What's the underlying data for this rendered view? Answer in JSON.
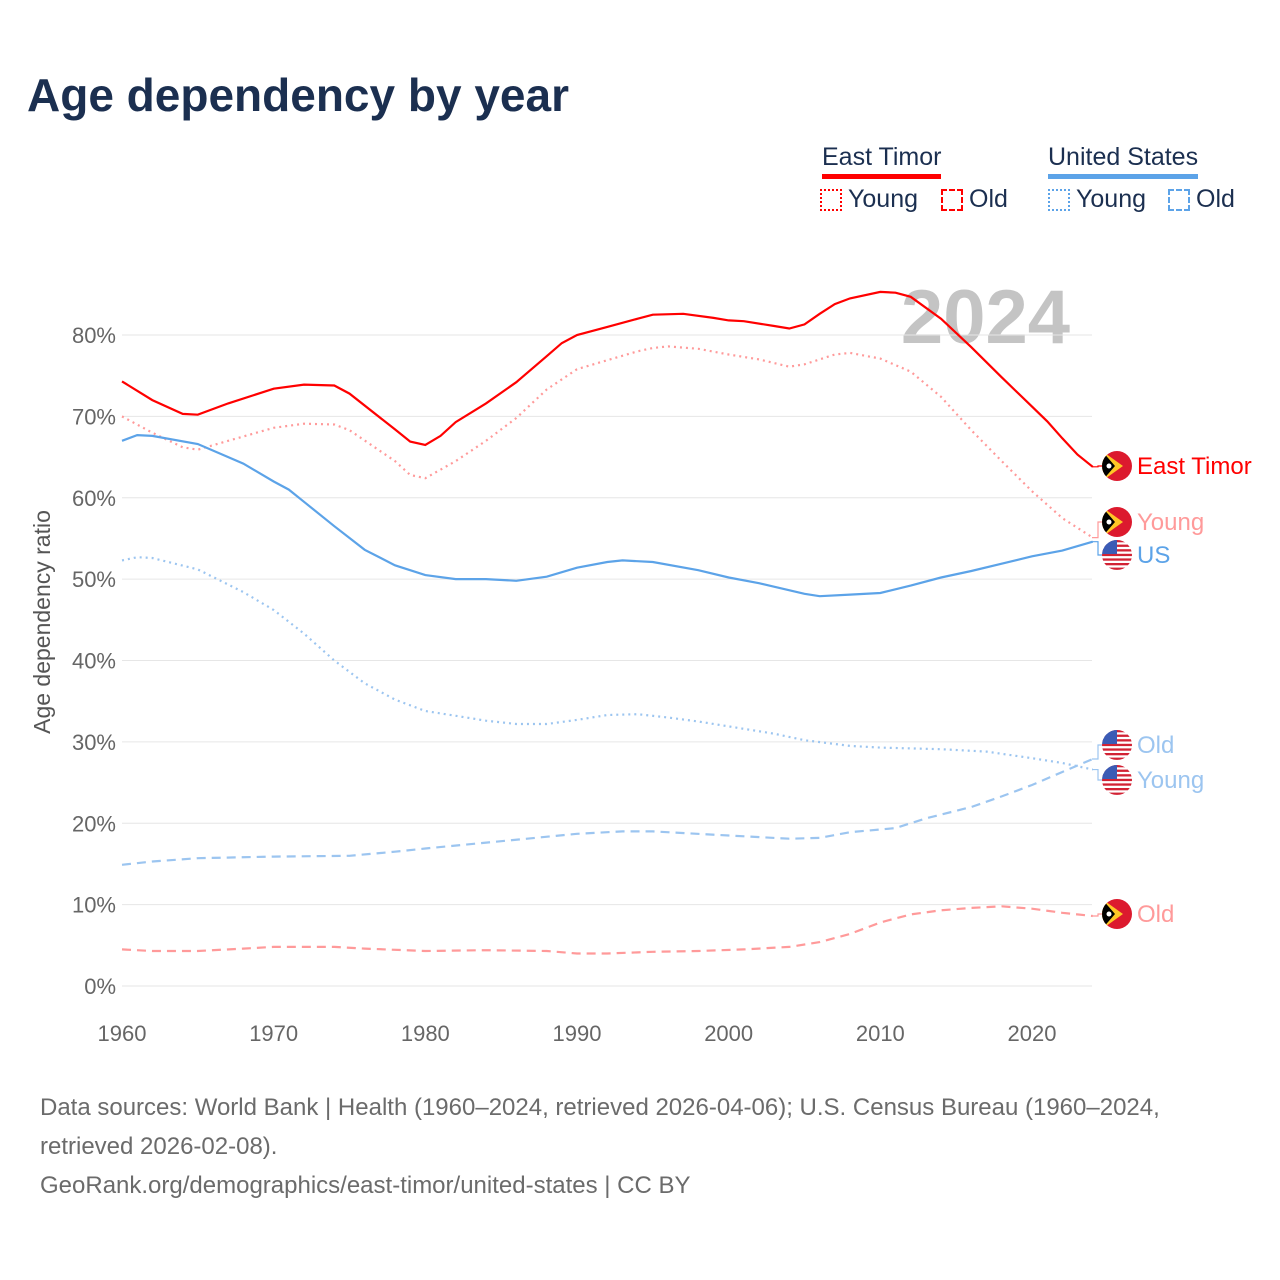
{
  "title": "Age dependency by year",
  "legend": {
    "groups": [
      {
        "name": "East Timor",
        "color": "#ff0000",
        "items": [
          {
            "label": "Young",
            "style": "dotted"
          },
          {
            "label": "Old",
            "style": "dashed"
          }
        ]
      },
      {
        "name": "United States",
        "color": "#5ca3e8",
        "items": [
          {
            "label": "Young",
            "style": "dotted"
          },
          {
            "label": "Old",
            "style": "dashed"
          }
        ]
      }
    ]
  },
  "watermark_year": "2024",
  "footer": {
    "sources": "Data sources: World Bank | Health (1960–2024, retrieved 2026-04-06); U.S. Census Bureau (1960–2024, retrieved 2026-02-08).",
    "link": "GeoRank.org/demographics/east-timor/united-states | CC BY"
  },
  "chart_data": {
    "type": "line",
    "title": "Age dependency by year",
    "xlabel": "",
    "ylabel": "Age dependency ratio",
    "xlim": [
      1960,
      2024
    ],
    "ylim": [
      0,
      85
    ],
    "xticks": [
      1960,
      1970,
      1980,
      1990,
      2000,
      2010,
      2020
    ],
    "yticks": [
      0,
      10,
      20,
      30,
      40,
      50,
      60,
      70,
      80
    ],
    "ytick_labels": [
      "0%",
      "10%",
      "20%",
      "30%",
      "40%",
      "50%",
      "60%",
      "70%",
      "80%"
    ],
    "series": [
      {
        "name": "East Timor",
        "end_label": "East Timor",
        "flag": "tl",
        "color": "#ff0000",
        "dash": "solid",
        "points": [
          [
            1960,
            74.3
          ],
          [
            1962,
            72
          ],
          [
            1964,
            70.3
          ],
          [
            1965,
            70.2
          ],
          [
            1967,
            71.6
          ],
          [
            1970,
            73.4
          ],
          [
            1972,
            73.9
          ],
          [
            1974,
            73.8
          ],
          [
            1975,
            72.8
          ],
          [
            1978,
            68.4
          ],
          [
            1979,
            66.9
          ],
          [
            1980,
            66.5
          ],
          [
            1981,
            67.6
          ],
          [
            1982,
            69.3
          ],
          [
            1984,
            71.6
          ],
          [
            1986,
            74.2
          ],
          [
            1988,
            77.4
          ],
          [
            1989,
            79
          ],
          [
            1990,
            80
          ],
          [
            1992,
            81
          ],
          [
            1994,
            82
          ],
          [
            1995,
            82.5
          ],
          [
            1997,
            82.6
          ],
          [
            1999,
            82.1
          ],
          [
            2000,
            81.8
          ],
          [
            2001,
            81.7
          ],
          [
            2003,
            81.1
          ],
          [
            2004,
            80.8
          ],
          [
            2005,
            81.3
          ],
          [
            2006,
            82.6
          ],
          [
            2007,
            83.8
          ],
          [
            2008,
            84.5
          ],
          [
            2010,
            85.3
          ],
          [
            2011,
            85.2
          ],
          [
            2012,
            84.7
          ],
          [
            2014,
            82
          ],
          [
            2016,
            78.5
          ],
          [
            2018,
            74.8
          ],
          [
            2020,
            71.2
          ],
          [
            2021,
            69.4
          ],
          [
            2022,
            67.3
          ],
          [
            2023,
            65.3
          ],
          [
            2024,
            63.8
          ]
        ]
      },
      {
        "name": "East Timor Young",
        "end_label": "Young",
        "flag": "tl",
        "color": "#ff9a9a",
        "dash": "dotted",
        "points": [
          [
            1960,
            70
          ],
          [
            1962,
            68
          ],
          [
            1964,
            66.2
          ],
          [
            1965,
            65.9
          ],
          [
            1967,
            67
          ],
          [
            1970,
            68.6
          ],
          [
            1972,
            69.1
          ],
          [
            1974,
            69
          ],
          [
            1975,
            68.3
          ],
          [
            1978,
            64.5
          ],
          [
            1979,
            62.8
          ],
          [
            1980,
            62.4
          ],
          [
            1982,
            64.5
          ],
          [
            1984,
            67
          ],
          [
            1986,
            69.8
          ],
          [
            1988,
            73.3
          ],
          [
            1990,
            75.8
          ],
          [
            1992,
            76.9
          ],
          [
            1994,
            78
          ],
          [
            1995,
            78.4
          ],
          [
            1996,
            78.6
          ],
          [
            1998,
            78.3
          ],
          [
            2000,
            77.6
          ],
          [
            2002,
            77
          ],
          [
            2004,
            76.1
          ],
          [
            2005,
            76.4
          ],
          [
            2007,
            77.6
          ],
          [
            2008,
            77.8
          ],
          [
            2010,
            77.1
          ],
          [
            2012,
            75.5
          ],
          [
            2014,
            72.4
          ],
          [
            2016,
            68.3
          ],
          [
            2018,
            64.5
          ],
          [
            2020,
            60.8
          ],
          [
            2022,
            57.5
          ],
          [
            2024,
            55.1
          ]
        ]
      },
      {
        "name": "United States",
        "end_label": "US",
        "flag": "us",
        "color": "#5ca3e8",
        "dash": "solid",
        "points": [
          [
            1960,
            67
          ],
          [
            1961,
            67.7
          ],
          [
            1962,
            67.6
          ],
          [
            1965,
            66.6
          ],
          [
            1968,
            64.2
          ],
          [
            1970,
            62
          ],
          [
            1971,
            61
          ],
          [
            1972,
            59.5
          ],
          [
            1974,
            56.5
          ],
          [
            1976,
            53.6
          ],
          [
            1978,
            51.7
          ],
          [
            1980,
            50.5
          ],
          [
            1982,
            50
          ],
          [
            1984,
            50
          ],
          [
            1986,
            49.8
          ],
          [
            1988,
            50.3
          ],
          [
            1990,
            51.4
          ],
          [
            1992,
            52.1
          ],
          [
            1993,
            52.3
          ],
          [
            1995,
            52.1
          ],
          [
            1998,
            51.1
          ],
          [
            2000,
            50.2
          ],
          [
            2002,
            49.5
          ],
          [
            2005,
            48.2
          ],
          [
            2006,
            47.9
          ],
          [
            2008,
            48.1
          ],
          [
            2010,
            48.3
          ],
          [
            2012,
            49.2
          ],
          [
            2014,
            50.2
          ],
          [
            2016,
            51
          ],
          [
            2018,
            51.9
          ],
          [
            2020,
            52.8
          ],
          [
            2022,
            53.5
          ],
          [
            2024,
            54.6
          ]
        ]
      },
      {
        "name": "United States Old",
        "end_label": "Old",
        "flag": "us",
        "color": "#9cc5f0",
        "dash": "dashed",
        "points": [
          [
            1960,
            14.9
          ],
          [
            1962,
            15.3
          ],
          [
            1965,
            15.7
          ],
          [
            1970,
            15.9
          ],
          [
            1975,
            16
          ],
          [
            1978,
            16.5
          ],
          [
            1980,
            16.9
          ],
          [
            1985,
            17.8
          ],
          [
            1990,
            18.7
          ],
          [
            1993,
            19
          ],
          [
            1995,
            19
          ],
          [
            2000,
            18.5
          ],
          [
            2004,
            18.1
          ],
          [
            2006,
            18.2
          ],
          [
            2008,
            18.9
          ],
          [
            2011,
            19.4
          ],
          [
            2013,
            20.6
          ],
          [
            2016,
            22
          ],
          [
            2018,
            23.3
          ],
          [
            2020,
            24.7
          ],
          [
            2022,
            26.3
          ],
          [
            2024,
            27.9
          ]
        ]
      },
      {
        "name": "United States Young",
        "end_label": "Young",
        "flag": "us",
        "color": "#9cc5f0",
        "dash": "dotted",
        "points": [
          [
            1960,
            52.3
          ],
          [
            1961,
            52.7
          ],
          [
            1962,
            52.6
          ],
          [
            1965,
            51.2
          ],
          [
            1968,
            48.4
          ],
          [
            1970,
            46.2
          ],
          [
            1972,
            43.3
          ],
          [
            1974,
            40
          ],
          [
            1976,
            37.2
          ],
          [
            1978,
            35.2
          ],
          [
            1980,
            33.8
          ],
          [
            1982,
            33.2
          ],
          [
            1984,
            32.6
          ],
          [
            1986,
            32.2
          ],
          [
            1988,
            32.2
          ],
          [
            1990,
            32.7
          ],
          [
            1992,
            33.3
          ],
          [
            1994,
            33.4
          ],
          [
            1996,
            33
          ],
          [
            1998,
            32.5
          ],
          [
            2000,
            31.9
          ],
          [
            2003,
            31
          ],
          [
            2005,
            30.2
          ],
          [
            2008,
            29.5
          ],
          [
            2010,
            29.3
          ],
          [
            2014,
            29.1
          ],
          [
            2017,
            28.8
          ],
          [
            2020,
            28
          ],
          [
            2022,
            27.4
          ],
          [
            2024,
            26.6
          ]
        ]
      },
      {
        "name": "East Timor Old",
        "end_label": "Old",
        "flag": "tl",
        "color": "#ff9a9a",
        "dash": "dashed",
        "points": [
          [
            1960,
            4.5
          ],
          [
            1962,
            4.3
          ],
          [
            1965,
            4.3
          ],
          [
            1968,
            4.6
          ],
          [
            1970,
            4.8
          ],
          [
            1974,
            4.8
          ],
          [
            1976,
            4.6
          ],
          [
            1980,
            4.3
          ],
          [
            1984,
            4.4
          ],
          [
            1988,
            4.3
          ],
          [
            1990,
            4
          ],
          [
            1992,
            4
          ],
          [
            1995,
            4.2
          ],
          [
            1998,
            4.3
          ],
          [
            2001,
            4.5
          ],
          [
            2004,
            4.8
          ],
          [
            2006,
            5.4
          ],
          [
            2008,
            6.4
          ],
          [
            2010,
            7.8
          ],
          [
            2012,
            8.8
          ],
          [
            2014,
            9.3
          ],
          [
            2016,
            9.6
          ],
          [
            2018,
            9.8
          ],
          [
            2020,
            9.5
          ],
          [
            2022,
            9
          ],
          [
            2024,
            8.6
          ]
        ]
      }
    ]
  }
}
